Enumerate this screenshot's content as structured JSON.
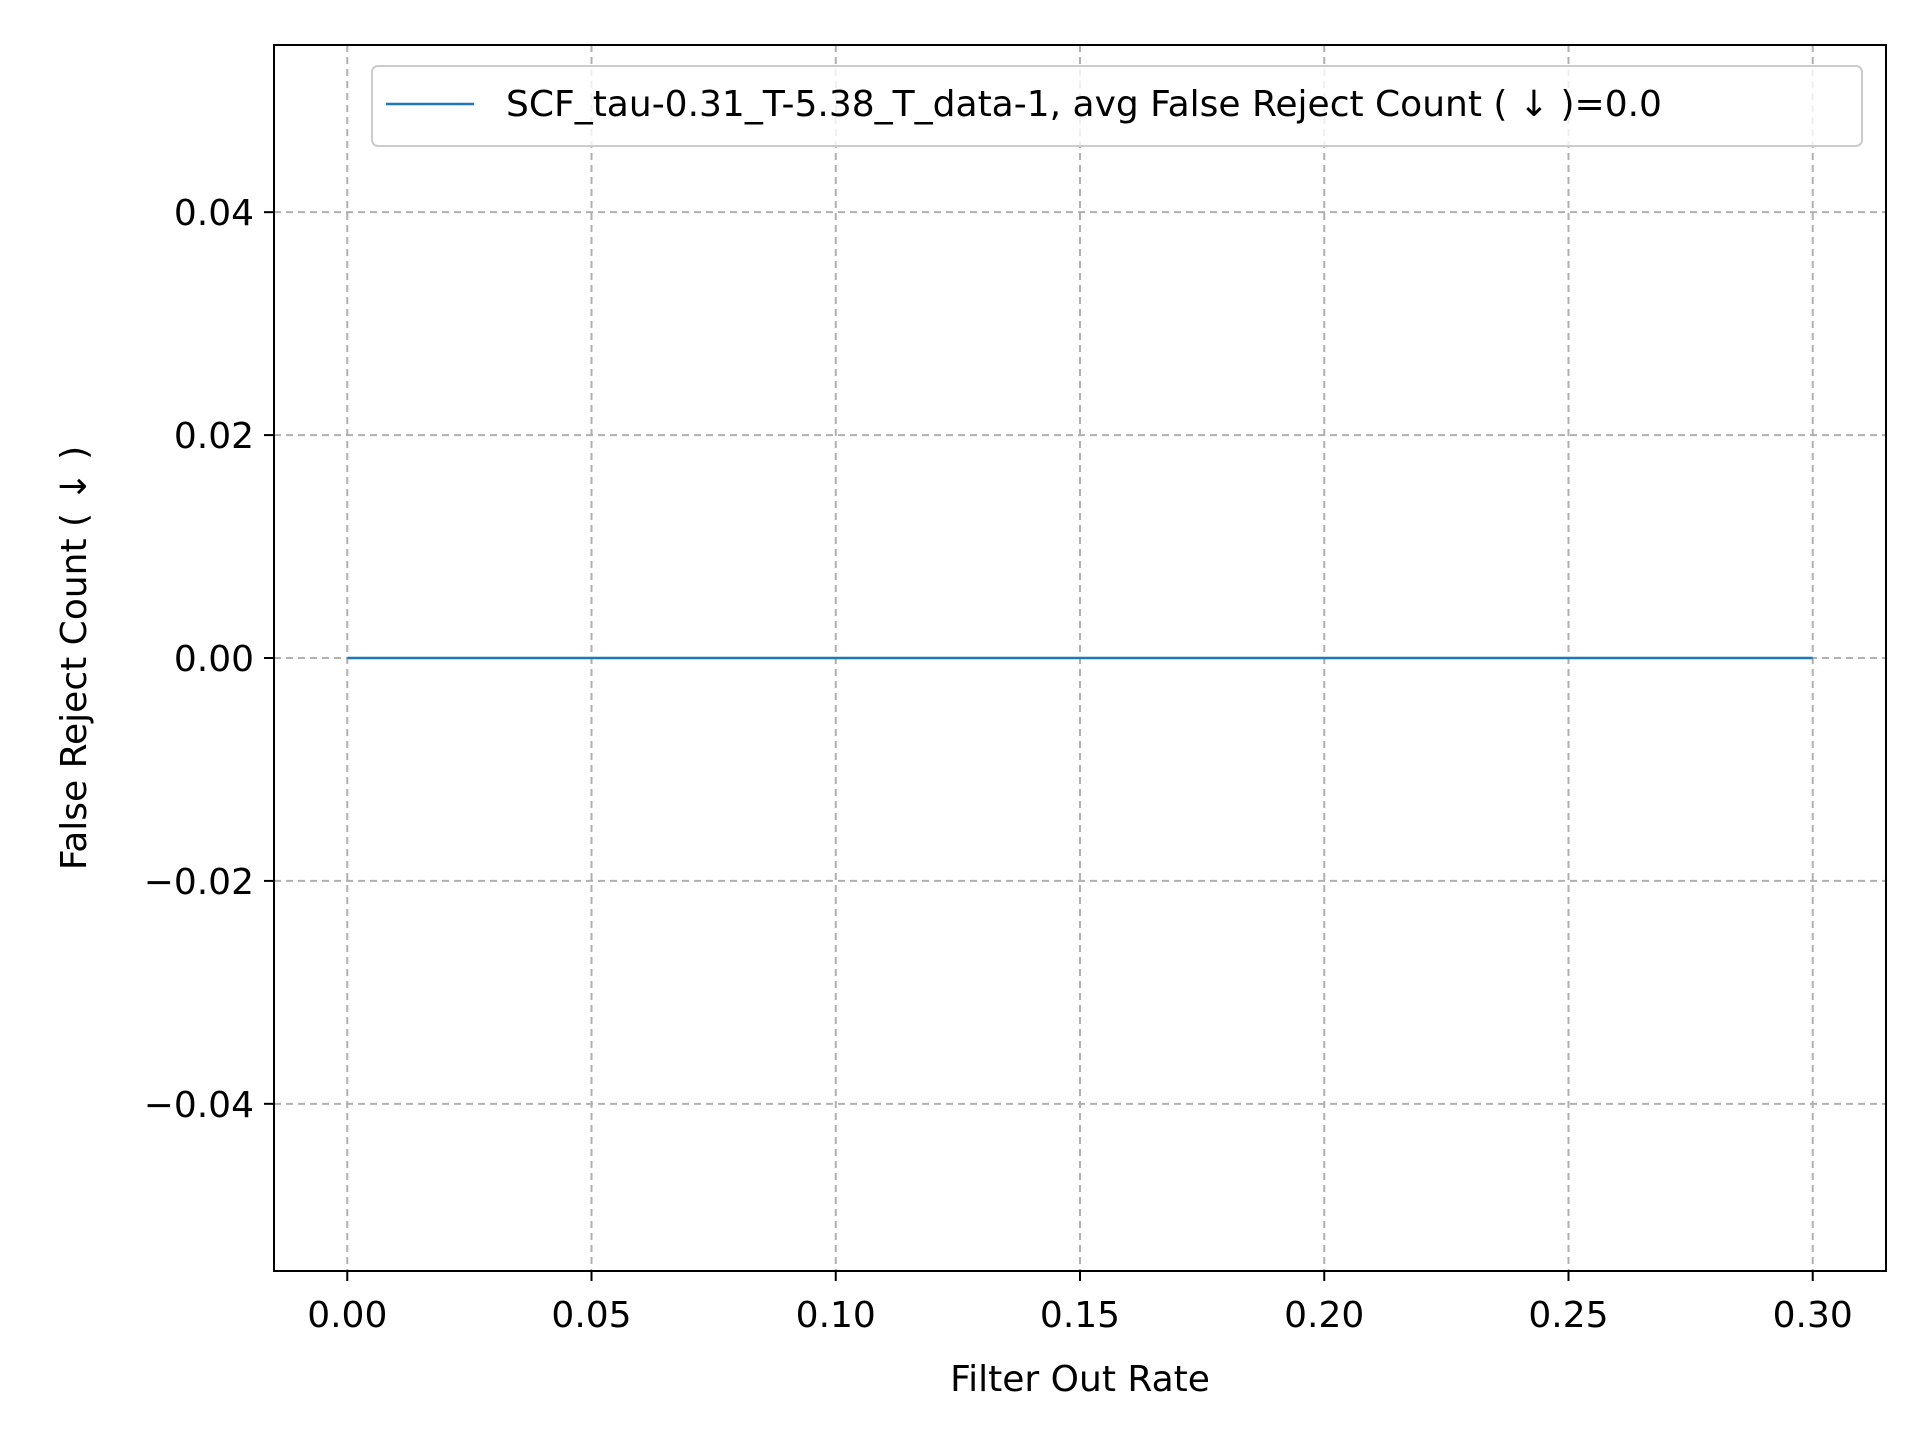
{
  "chart_data": {
    "type": "line",
    "title": "",
    "xlabel": "Filter Out Rate",
    "ylabel": "False Reject Count ( ↓ )",
    "xlim": [
      -0.015,
      0.315
    ],
    "ylim": [
      -0.055,
      0.055
    ],
    "x_ticks": [
      0.0,
      0.05,
      0.1,
      0.15,
      0.2,
      0.25,
      0.3
    ],
    "x_tick_labels": [
      "0.00",
      "0.05",
      "0.10",
      "0.15",
      "0.20",
      "0.25",
      "0.30"
    ],
    "y_ticks": [
      -0.04,
      -0.02,
      0.0,
      0.02,
      0.04
    ],
    "y_tick_labels": [
      "−0.04",
      "−0.02",
      "0.00",
      "0.02",
      "0.04"
    ],
    "grid": true,
    "legend_position": "top-right",
    "series": [
      {
        "name": "SCF_tau-0.31_T-5.38_T_data-1, avg False Reject Count ( ↓ )=0.0",
        "color": "#1f77b4",
        "x": [
          0.0,
          0.05,
          0.1,
          0.15,
          0.2,
          0.25,
          0.3
        ],
        "y": [
          0.0,
          0.0,
          0.0,
          0.0,
          0.0,
          0.0,
          0.0
        ]
      }
    ]
  }
}
